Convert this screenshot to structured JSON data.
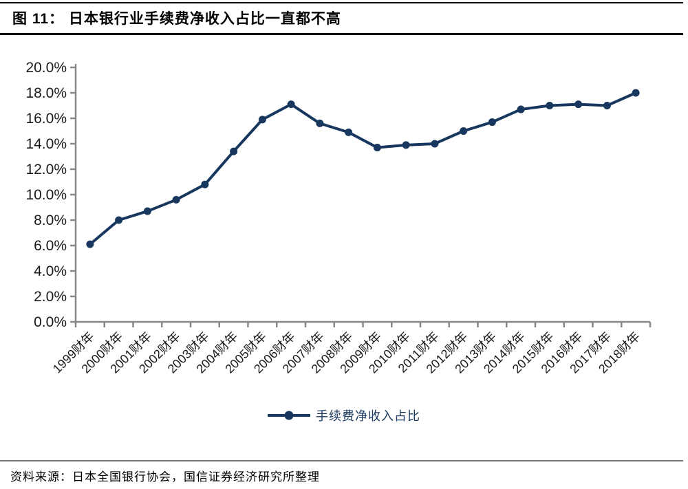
{
  "figure": {
    "title": "图 11： 日本银行业手续费净收入占比一直都不高",
    "source": "资料来源：日本全国银行协会，国信证券经济研究所整理"
  },
  "chart_data": {
    "type": "line",
    "title": "日本银行业手续费净收入占比一直都不高",
    "xlabel": "",
    "ylabel": "",
    "categories": [
      "1999财年",
      "2000财年",
      "2001财年",
      "2002财年",
      "2003财年",
      "2004财年",
      "2005财年",
      "2006财年",
      "2007财年",
      "2008财年",
      "2009财年",
      "2010财年",
      "2011财年",
      "2012财年",
      "2013财年",
      "2014财年",
      "2015财年",
      "2016财年",
      "2017财年",
      "2018财年"
    ],
    "series": [
      {
        "name": "手续费净收入占比",
        "values": [
          6.1,
          8.0,
          8.7,
          9.6,
          10.8,
          13.4,
          15.9,
          17.1,
          15.6,
          14.9,
          13.7,
          13.9,
          14.0,
          15.0,
          15.7,
          16.7,
          17.0,
          17.1,
          17.0,
          18.0
        ]
      }
    ],
    "ylim": [
      0,
      20
    ],
    "ytick_step": 2,
    "ytick_labels": [
      "0.0%",
      "2.0%",
      "4.0%",
      "6.0%",
      "8.0%",
      "10.0%",
      "12.0%",
      "14.0%",
      "16.0%",
      "18.0%",
      "20.0%"
    ],
    "grid": false,
    "legend_position": "bottom",
    "colors": {
      "line": "#17375E",
      "axis": "#878787",
      "text": "#1a1a1a"
    }
  }
}
